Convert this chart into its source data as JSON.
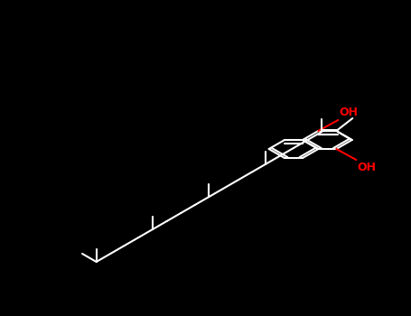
{
  "background_color": "#000000",
  "bond_color": "#ffffff",
  "oh_color": "#ff0000",
  "lw": 1.5,
  "fontsize": 9,
  "oh_fontsize": 9
}
